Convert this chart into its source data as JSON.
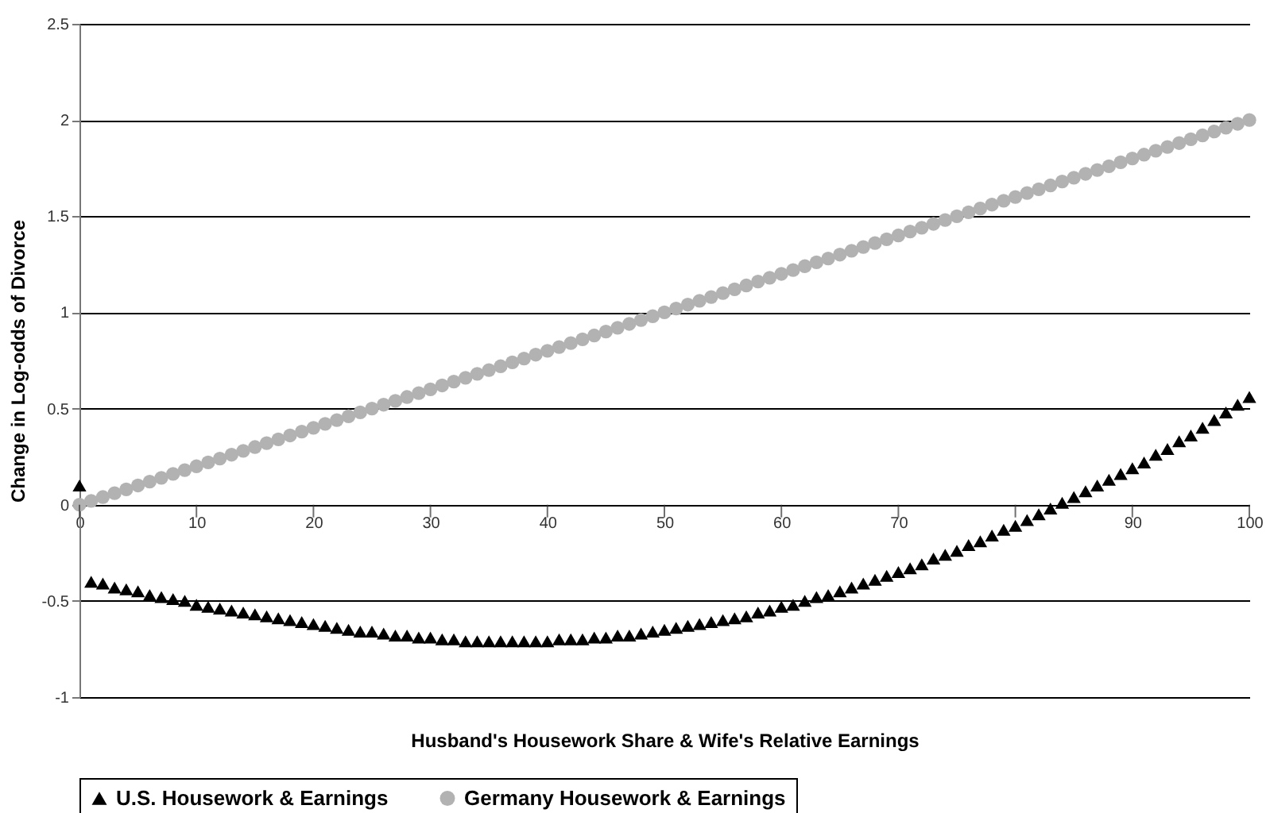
{
  "chart_data": {
    "type": "scatter",
    "xlabel": "Husband's Housework Share & Wife's Relative Earnings",
    "ylabel": "Change in Log-odds of Divorce",
    "x": [
      0,
      1,
      2,
      3,
      4,
      5,
      6,
      7,
      8,
      9,
      10,
      11,
      12,
      13,
      14,
      15,
      16,
      17,
      18,
      19,
      20,
      21,
      22,
      23,
      24,
      25,
      26,
      27,
      28,
      29,
      30,
      31,
      32,
      33,
      34,
      35,
      36,
      37,
      38,
      39,
      40,
      41,
      42,
      43,
      44,
      45,
      46,
      47,
      48,
      49,
      50,
      51,
      52,
      53,
      54,
      55,
      56,
      57,
      58,
      59,
      60,
      61,
      62,
      63,
      64,
      65,
      66,
      67,
      68,
      69,
      70,
      71,
      72,
      73,
      74,
      75,
      76,
      77,
      78,
      79,
      80,
      81,
      82,
      83,
      84,
      85,
      86,
      87,
      88,
      89,
      90,
      91,
      92,
      93,
      94,
      95,
      96,
      97,
      98,
      99,
      100
    ],
    "series": [
      {
        "name": "U.S. Housework & Earnings",
        "color": "#000000",
        "marker": "triangle",
        "values": [
          0.1,
          -0.4,
          -0.41,
          -0.43,
          -0.44,
          -0.45,
          -0.47,
          -0.48,
          -0.49,
          -0.5,
          -0.52,
          -0.53,
          -0.54,
          -0.55,
          -0.56,
          -0.57,
          -0.58,
          -0.59,
          -0.6,
          -0.61,
          -0.62,
          -0.63,
          -0.64,
          -0.65,
          -0.66,
          -0.66,
          -0.67,
          -0.68,
          -0.68,
          -0.69,
          -0.69,
          -0.7,
          -0.7,
          -0.71,
          -0.71,
          -0.71,
          -0.71,
          -0.71,
          -0.71,
          -0.71,
          -0.71,
          -0.7,
          -0.7,
          -0.7,
          -0.69,
          -0.69,
          -0.68,
          -0.68,
          -0.67,
          -0.66,
          -0.65,
          -0.64,
          -0.63,
          -0.62,
          -0.61,
          -0.6,
          -0.59,
          -0.58,
          -0.56,
          -0.55,
          -0.53,
          -0.52,
          -0.5,
          -0.48,
          -0.47,
          -0.45,
          -0.43,
          -0.41,
          -0.39,
          -0.37,
          -0.35,
          -0.33,
          -0.31,
          -0.28,
          -0.26,
          -0.24,
          -0.21,
          -0.19,
          -0.16,
          -0.13,
          -0.11,
          -0.08,
          -0.05,
          -0.02,
          0.01,
          0.04,
          0.07,
          0.1,
          0.13,
          0.16,
          0.19,
          0.22,
          0.26,
          0.29,
          0.33,
          0.36,
          0.4,
          0.44,
          0.48,
          0.52,
          0.56
        ]
      },
      {
        "name": "Germany Housework & Earnings",
        "color": "#b2b2b2",
        "marker": "circle",
        "values": [
          0,
          0.02,
          0.04,
          0.06,
          0.08,
          0.1,
          0.12,
          0.14,
          0.16,
          0.18,
          0.2,
          0.22,
          0.24,
          0.26,
          0.28,
          0.3,
          0.32,
          0.34,
          0.36,
          0.38,
          0.4,
          0.42,
          0.44,
          0.46,
          0.48,
          0.5,
          0.52,
          0.54,
          0.56,
          0.58,
          0.6,
          0.62,
          0.64,
          0.66,
          0.68,
          0.7,
          0.72,
          0.74,
          0.76,
          0.78,
          0.8,
          0.82,
          0.84,
          0.86,
          0.88,
          0.9,
          0.92,
          0.94,
          0.96,
          0.98,
          1.0,
          1.02,
          1.04,
          1.06,
          1.08,
          1.1,
          1.12,
          1.14,
          1.16,
          1.18,
          1.2,
          1.22,
          1.24,
          1.26,
          1.28,
          1.3,
          1.32,
          1.34,
          1.36,
          1.38,
          1.4,
          1.42,
          1.44,
          1.46,
          1.48,
          1.5,
          1.52,
          1.54,
          1.56,
          1.58,
          1.6,
          1.62,
          1.64,
          1.66,
          1.68,
          1.7,
          1.72,
          1.74,
          1.76,
          1.78,
          1.8,
          1.82,
          1.84,
          1.86,
          1.88,
          1.9,
          1.92,
          1.94,
          1.96,
          1.98,
          2.0
        ]
      }
    ],
    "xlim": [
      0,
      100
    ],
    "xticks": [
      0,
      10,
      20,
      30,
      40,
      50,
      60,
      70,
      {
        "value": 80,
        "label": null
      },
      90,
      100
    ],
    "ylim": [
      -1,
      2.5
    ],
    "yticks": [
      -1,
      -0.5,
      0,
      0.5,
      1,
      1.5,
      2,
      2.5
    ],
    "grid": "y",
    "legend": "bottom"
  }
}
